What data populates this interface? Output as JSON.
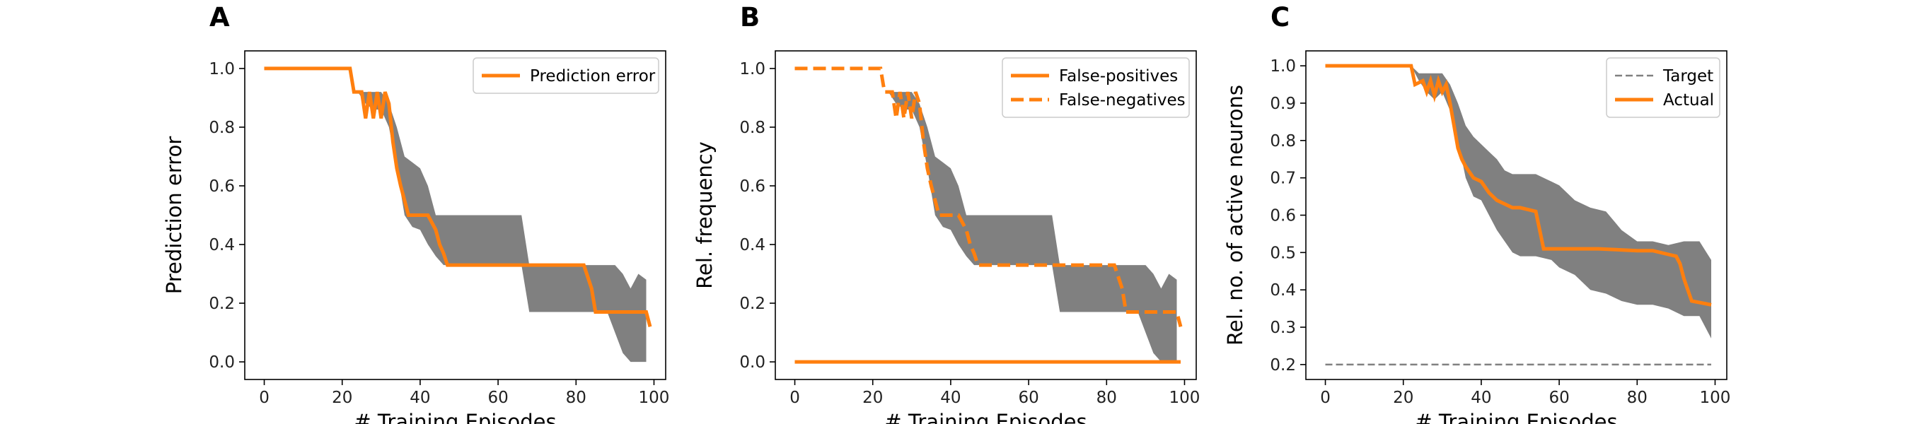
{
  "chart_data": [
    {
      "type": "line",
      "panel_label": "A",
      "xlabel": "# Training Episodes",
      "ylabel": "Prediction error",
      "xlim": [
        -5,
        103
      ],
      "ylim": [
        -0.06,
        1.06
      ],
      "xticks": [
        0,
        20,
        40,
        60,
        80,
        100
      ],
      "yticks": [
        0.0,
        0.2,
        0.4,
        0.6,
        0.8,
        1.0
      ],
      "ytick_labels": [
        "0.0",
        "0.2",
        "0.4",
        "0.6",
        "0.8",
        "1.0"
      ],
      "legend_position": "top-right",
      "band": {
        "x": [
          0,
          22,
          24,
          26,
          28,
          30,
          32,
          34,
          36,
          38,
          40,
          42,
          44,
          46,
          48,
          50,
          60,
          66,
          68,
          80,
          84,
          86,
          88,
          90,
          92,
          94,
          96,
          98
        ],
        "upper": [
          1.0,
          1.0,
          0.92,
          0.92,
          0.92,
          0.92,
          0.88,
          0.8,
          0.7,
          0.68,
          0.66,
          0.6,
          0.5,
          0.5,
          0.5,
          0.5,
          0.5,
          0.5,
          0.33,
          0.33,
          0.33,
          0.33,
          0.33,
          0.33,
          0.3,
          0.25,
          0.3,
          0.28
        ],
        "lower": [
          1.0,
          1.0,
          0.92,
          0.88,
          0.86,
          0.86,
          0.8,
          0.66,
          0.5,
          0.46,
          0.45,
          0.4,
          0.36,
          0.33,
          0.33,
          0.33,
          0.33,
          0.33,
          0.17,
          0.17,
          0.17,
          0.17,
          0.17,
          0.1,
          0.03,
          0.0,
          0.0,
          0.0
        ]
      },
      "series": [
        {
          "name": "Prediction error",
          "color": "#ff7f0e",
          "style": "solid",
          "x": [
            0,
            22,
            23,
            25,
            26,
            27,
            28,
            29,
            30,
            31,
            32,
            33,
            34,
            35,
            36,
            37,
            38,
            40,
            42,
            44,
            45,
            46,
            47,
            60,
            82,
            84,
            85,
            90,
            96,
            98,
            99
          ],
          "y": [
            1.0,
            1.0,
            0.92,
            0.92,
            0.83,
            0.92,
            0.83,
            0.92,
            0.83,
            0.92,
            0.88,
            0.75,
            0.66,
            0.6,
            0.55,
            0.5,
            0.5,
            0.5,
            0.5,
            0.45,
            0.4,
            0.37,
            0.33,
            0.33,
            0.33,
            0.25,
            0.17,
            0.17,
            0.17,
            0.17,
            0.12
          ]
        }
      ]
    },
    {
      "type": "line",
      "panel_label": "B",
      "xlabel": "# Training Episodes",
      "ylabel": "Rel. frequency",
      "xlim": [
        -5,
        103
      ],
      "ylim": [
        -0.06,
        1.06
      ],
      "xticks": [
        0,
        20,
        40,
        60,
        80,
        100
      ],
      "yticks": [
        0.0,
        0.2,
        0.4,
        0.6,
        0.8,
        1.0
      ],
      "ytick_labels": [
        "0.0",
        "0.2",
        "0.4",
        "0.6",
        "0.8",
        "1.0"
      ],
      "legend_position": "top-right",
      "band": {
        "x": [
          0,
          22,
          24,
          26,
          28,
          30,
          32,
          34,
          36,
          38,
          40,
          42,
          44,
          46,
          48,
          50,
          60,
          66,
          68,
          80,
          84,
          86,
          88,
          90,
          92,
          94,
          96,
          98
        ],
        "upper": [
          1.0,
          1.0,
          0.92,
          0.92,
          0.92,
          0.92,
          0.88,
          0.8,
          0.7,
          0.68,
          0.66,
          0.6,
          0.5,
          0.5,
          0.5,
          0.5,
          0.5,
          0.5,
          0.33,
          0.33,
          0.33,
          0.33,
          0.33,
          0.33,
          0.3,
          0.25,
          0.3,
          0.28
        ],
        "lower": [
          1.0,
          1.0,
          0.92,
          0.88,
          0.86,
          0.86,
          0.8,
          0.66,
          0.5,
          0.46,
          0.45,
          0.4,
          0.36,
          0.33,
          0.33,
          0.33,
          0.33,
          0.33,
          0.17,
          0.17,
          0.17,
          0.17,
          0.17,
          0.1,
          0.03,
          0.0,
          0.0,
          0.0
        ]
      },
      "series": [
        {
          "name": "False-positives",
          "color": "#ff7f0e",
          "style": "solid",
          "x": [
            0,
            99
          ],
          "y": [
            0.0,
            0.0
          ]
        },
        {
          "name": "False-negatives",
          "color": "#ff7f0e",
          "style": "dashed",
          "x": [
            0,
            22,
            23,
            25,
            26,
            27,
            28,
            29,
            30,
            31,
            32,
            33,
            34,
            35,
            36,
            37,
            38,
            40,
            42,
            44,
            45,
            46,
            47,
            60,
            82,
            84,
            85,
            90,
            96,
            98,
            99
          ],
          "y": [
            1.0,
            1.0,
            0.92,
            0.92,
            0.83,
            0.92,
            0.83,
            0.92,
            0.83,
            0.92,
            0.88,
            0.75,
            0.66,
            0.6,
            0.55,
            0.5,
            0.5,
            0.5,
            0.5,
            0.45,
            0.4,
            0.37,
            0.33,
            0.33,
            0.33,
            0.25,
            0.17,
            0.17,
            0.17,
            0.17,
            0.12
          ]
        }
      ]
    },
    {
      "type": "line",
      "panel_label": "C",
      "xlabel": "# Training Episodes",
      "ylabel": "Rel. no. of active neurons",
      "xlim": [
        -5,
        103
      ],
      "ylim": [
        0.16,
        1.04
      ],
      "xticks": [
        0,
        20,
        40,
        60,
        80,
        100
      ],
      "yticks": [
        0.2,
        0.3,
        0.4,
        0.5,
        0.6,
        0.7,
        0.8,
        0.9,
        1.0
      ],
      "ytick_labels": [
        "0.2",
        "0.3",
        "0.4",
        "0.5",
        "0.6",
        "0.7",
        "0.8",
        "0.9",
        "1.0"
      ],
      "legend_position": "top-right",
      "band": {
        "x": [
          0,
          22,
          24,
          26,
          28,
          30,
          32,
          34,
          36,
          38,
          40,
          42,
          44,
          46,
          48,
          50,
          54,
          58,
          60,
          64,
          68,
          72,
          76,
          80,
          84,
          88,
          92,
          96,
          99
        ],
        "upper": [
          1.0,
          1.0,
          0.98,
          0.98,
          0.98,
          0.98,
          0.95,
          0.9,
          0.84,
          0.81,
          0.79,
          0.77,
          0.75,
          0.72,
          0.71,
          0.71,
          0.71,
          0.69,
          0.68,
          0.64,
          0.62,
          0.61,
          0.56,
          0.53,
          0.53,
          0.52,
          0.53,
          0.53,
          0.48
        ],
        "lower": [
          1.0,
          1.0,
          0.96,
          0.93,
          0.91,
          0.93,
          0.88,
          0.8,
          0.7,
          0.65,
          0.64,
          0.6,
          0.56,
          0.53,
          0.5,
          0.49,
          0.49,
          0.48,
          0.46,
          0.44,
          0.4,
          0.39,
          0.37,
          0.36,
          0.36,
          0.35,
          0.33,
          0.33,
          0.27
        ]
      },
      "series": [
        {
          "name": "Target",
          "color": "#808080",
          "style": "dashed",
          "x": [
            0,
            99
          ],
          "y": [
            0.2,
            0.2
          ]
        },
        {
          "name": "Actual",
          "color": "#ff7f0e",
          "style": "solid",
          "x": [
            0,
            22,
            23,
            25,
            26,
            27,
            28,
            29,
            30,
            31,
            32,
            33,
            34,
            35,
            36,
            38,
            40,
            42,
            44,
            46,
            48,
            50,
            54,
            56,
            60,
            70,
            80,
            84,
            88,
            90,
            91,
            92,
            93,
            94,
            99
          ],
          "y": [
            1.0,
            1.0,
            0.95,
            0.96,
            0.93,
            0.96,
            0.92,
            0.96,
            0.93,
            0.95,
            0.9,
            0.84,
            0.78,
            0.75,
            0.73,
            0.7,
            0.69,
            0.66,
            0.64,
            0.63,
            0.62,
            0.62,
            0.61,
            0.51,
            0.51,
            0.51,
            0.505,
            0.505,
            0.495,
            0.49,
            0.47,
            0.43,
            0.4,
            0.37,
            0.36
          ]
        }
      ]
    }
  ]
}
